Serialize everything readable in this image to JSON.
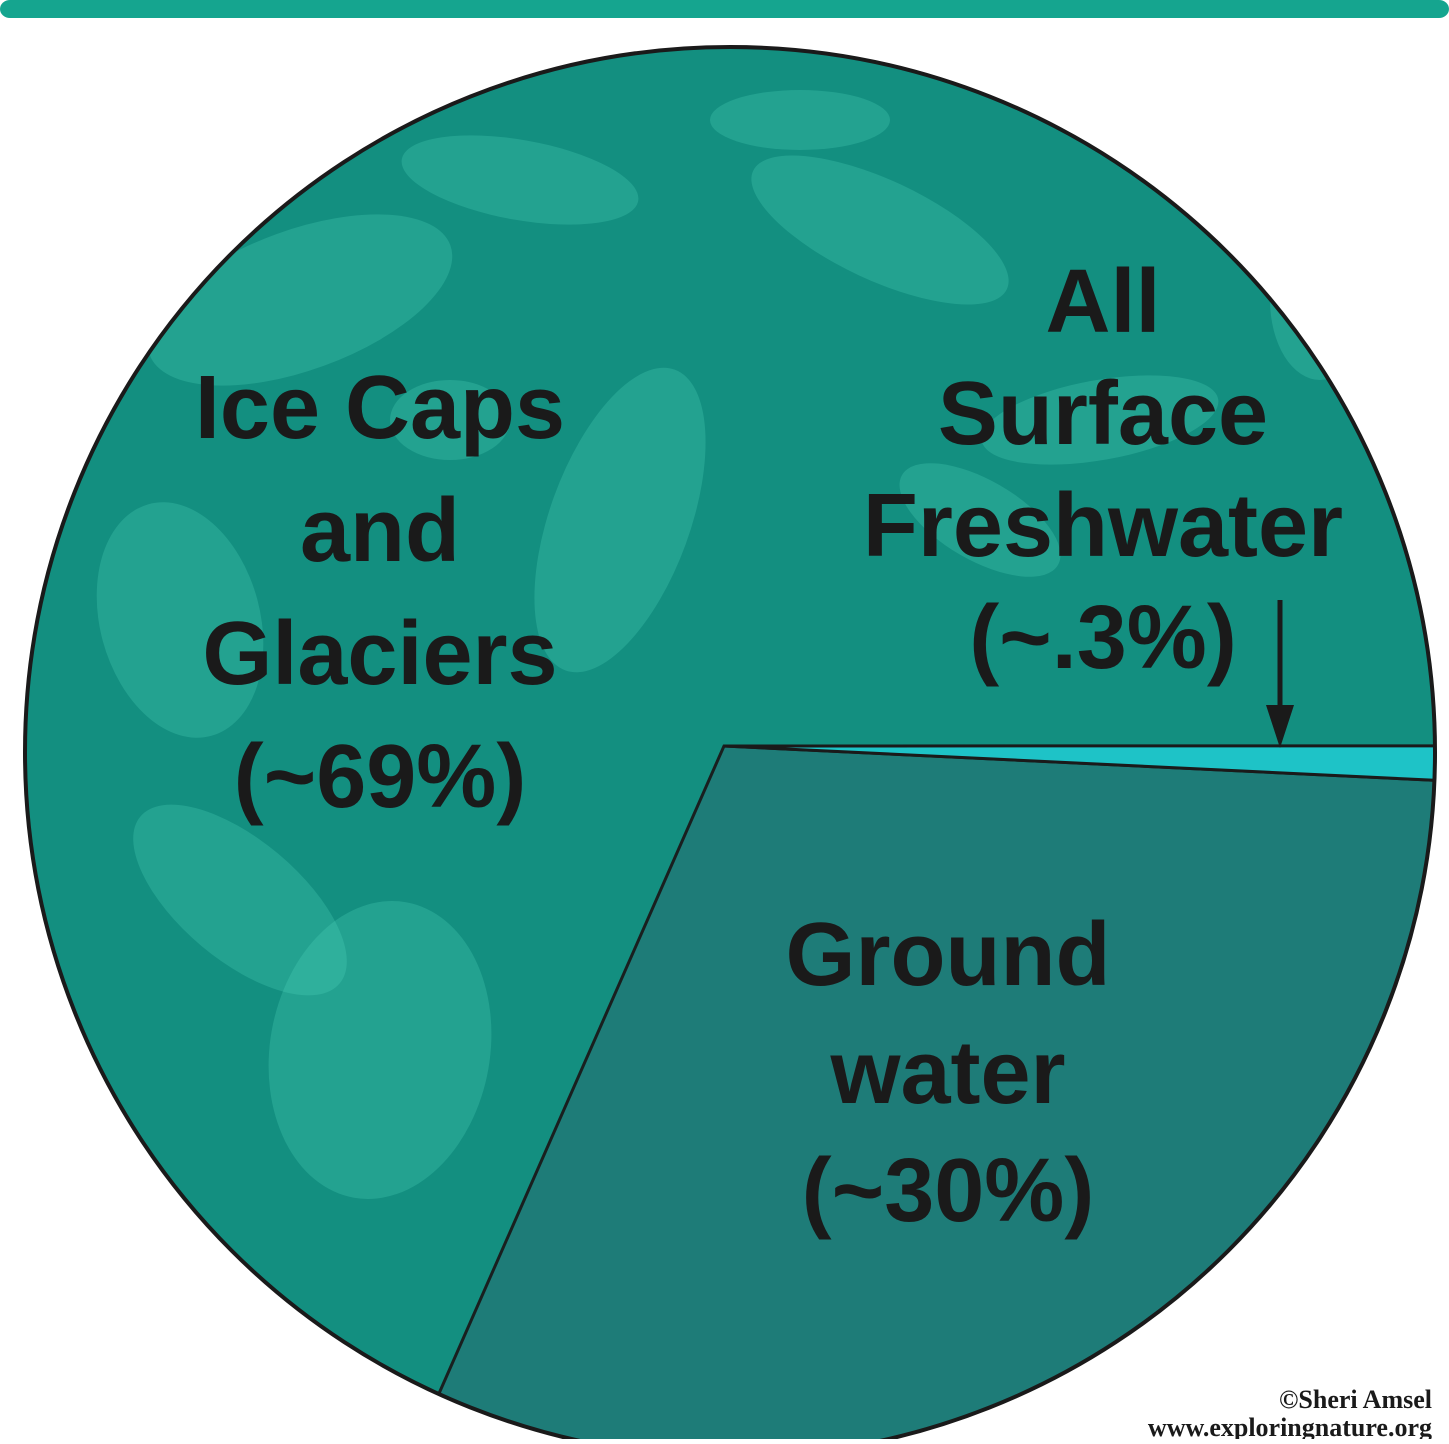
{
  "chart_data": {
    "type": "pie",
    "title": "",
    "slices": [
      {
        "label_lines": [
          "Ice Caps",
          "and",
          "Glaciers",
          "(~69%)"
        ],
        "value": 69,
        "color": "#138f80"
      },
      {
        "label_lines": [
          "Ground",
          "water",
          "(~30%)"
        ],
        "value": 30,
        "color": "#1f7b78"
      },
      {
        "label_lines": [
          "All",
          "Surface",
          "Freshwater",
          "(~.3%)"
        ],
        "value": 0.3,
        "color": "#1ec3c7"
      }
    ]
  },
  "credit": {
    "line1": "©Sheri Amsel",
    "line2": "www.exploringnature.org"
  },
  "colors": {
    "top_bar": "#15a58f",
    "outline": "#1a1a1a",
    "texture": "#4fd3bc"
  }
}
